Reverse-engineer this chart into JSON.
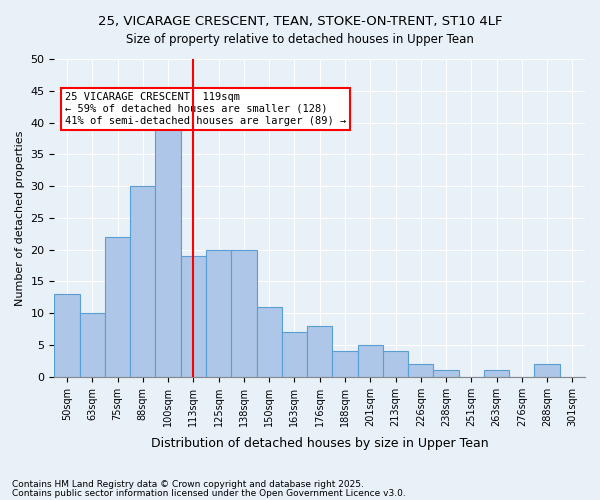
{
  "title_line1": "25, VICARAGE CRESCENT, TEAN, STOKE-ON-TRENT, ST10 4LF",
  "title_line2": "Size of property relative to detached houses in Upper Tean",
  "xlabel": "Distribution of detached houses by size in Upper Tean",
  "ylabel": "Number of detached properties",
  "bar_values": [
    13,
    10,
    22,
    30,
    39,
    19,
    20,
    20,
    11,
    7,
    8,
    4,
    5,
    4,
    2,
    1,
    0,
    1,
    0,
    2,
    0
  ],
  "bar_labels": [
    "50sqm",
    "63sqm",
    "75sqm",
    "88sqm",
    "100sqm",
    "113sqm",
    "125sqm",
    "138sqm",
    "150sqm",
    "163sqm",
    "176sqm",
    "188sqm",
    "201sqm",
    "213sqm",
    "226sqm",
    "238sqm",
    "251sqm",
    "263sqm",
    "276sqm",
    "288sqm",
    "301sqm"
  ],
  "bar_color": "#aec6e8",
  "bar_edge_color": "#5a9fd4",
  "vline_color": "red",
  "vline_position": 5.5,
  "ylim": [
    0,
    50
  ],
  "yticks": [
    0,
    5,
    10,
    15,
    20,
    25,
    30,
    35,
    40,
    45,
    50
  ],
  "annotation_text": "25 VICARAGE CRESCENT: 119sqm\n← 59% of detached houses are smaller (128)\n41% of semi-detached houses are larger (89) →",
  "annotation_box_color": "white",
  "annotation_box_edge": "red",
  "background_color": "#e8f0f8",
  "footnote_line1": "Contains HM Land Registry data © Crown copyright and database right 2025.",
  "footnote_line2": "Contains public sector information licensed under the Open Government Licence v3.0."
}
